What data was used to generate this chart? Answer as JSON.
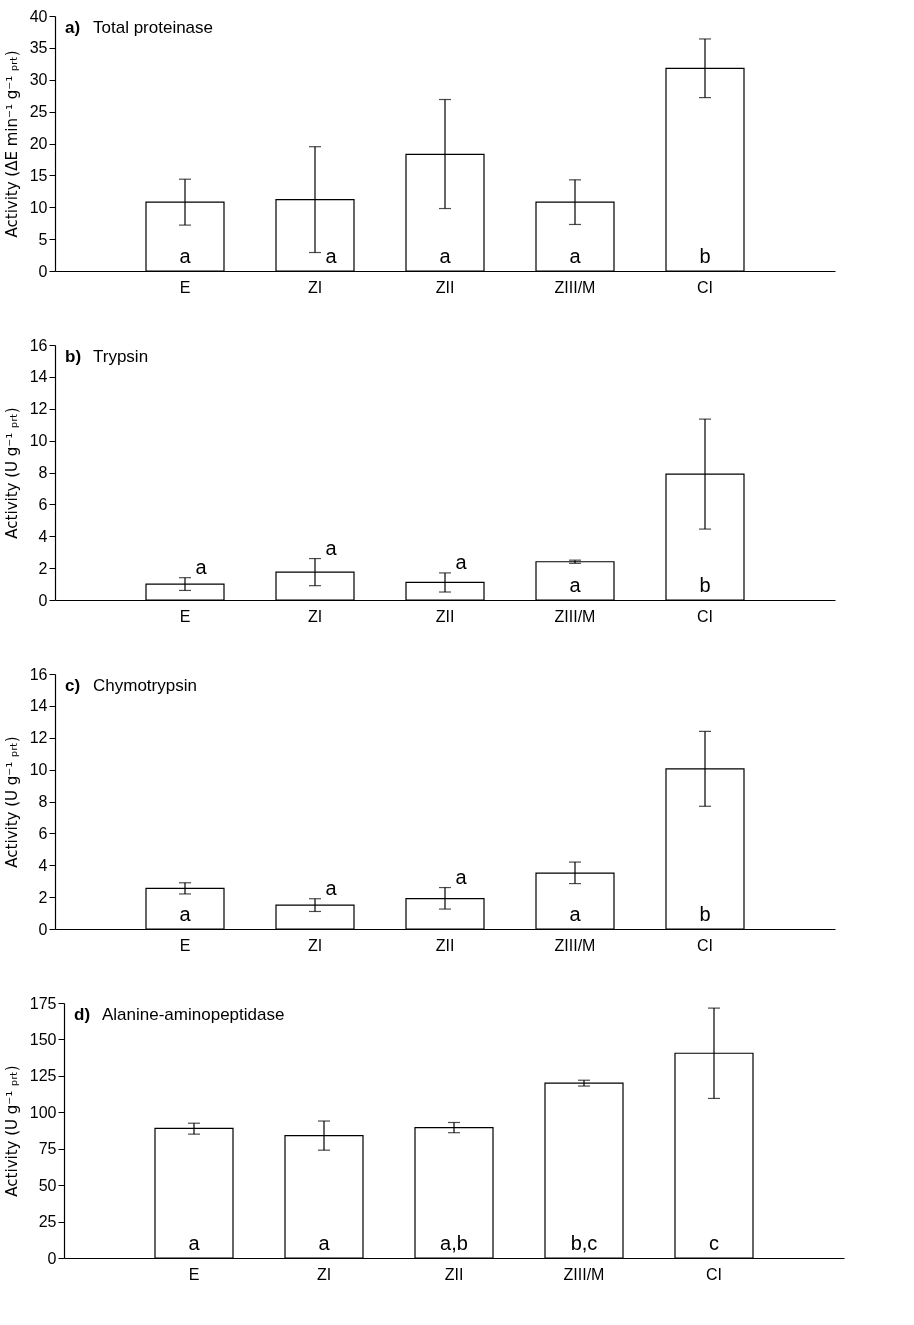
{
  "chart_data": [
    {
      "type": "bar",
      "title": "a) Total proteinase",
      "ylabel": "Activity (ΔE min⁻¹ g⁻¹ ₚᵣₜ)",
      "categories": [
        "E",
        "ZI",
        "ZII",
        "ZIII/M",
        "CI"
      ],
      "values": [
        10.8,
        11.2,
        18.3,
        10.8,
        31.8
      ],
      "errors": [
        [
          7.2,
          14.4
        ],
        [
          2.9,
          19.5
        ],
        [
          9.8,
          26.9
        ],
        [
          7.3,
          14.3
        ],
        [
          27.2,
          36.4
        ]
      ],
      "color": "#ffffff",
      "ylim": [
        0,
        40
      ],
      "yticks": [
        0,
        5,
        10,
        15,
        20,
        25,
        30,
        35,
        40
      ],
      "grid": false,
      "annotations": [
        "a",
        "a",
        "a",
        "a",
        "b"
      ]
    },
    {
      "type": "bar",
      "title": "b) Trypsin",
      "ylabel": "Activity (U g⁻¹ ₚᵣₜ)",
      "categories": [
        "E",
        "ZI",
        "ZII",
        "ZIII/M",
        "CI"
      ],
      "values": [
        1.0,
        1.75,
        1.1,
        2.4,
        7.9
      ],
      "errors": [
        [
          0.6,
          1.4
        ],
        [
          0.9,
          2.6
        ],
        [
          0.5,
          1.7
        ],
        [
          2.3,
          2.5
        ],
        [
          4.45,
          11.35
        ]
      ],
      "color": "#ffffff",
      "ylim": [
        0,
        16
      ],
      "yticks": [
        0,
        2,
        4,
        6,
        8,
        10,
        12,
        14,
        16
      ],
      "grid": false,
      "annotations": [
        "a",
        "a",
        "a",
        "a",
        "b"
      ]
    },
    {
      "type": "bar",
      "title": "c) Chymotrypsin",
      "ylabel": "Activity (U g⁻¹ ₚᵣₜ)",
      "categories": [
        "E",
        "ZI",
        "ZII",
        "ZIII/M",
        "CI"
      ],
      "values": [
        2.55,
        1.5,
        1.9,
        3.5,
        10.05
      ],
      "errors": [
        [
          2.2,
          2.9
        ],
        [
          1.1,
          1.9
        ],
        [
          1.25,
          2.6
        ],
        [
          2.85,
          4.2
        ],
        [
          7.7,
          12.4
        ]
      ],
      "color": "#ffffff",
      "ylim": [
        0,
        16
      ],
      "yticks": [
        0,
        2,
        4,
        6,
        8,
        10,
        12,
        14,
        16
      ],
      "grid": false,
      "annotations": [
        "a",
        "a",
        "a",
        "a",
        "b"
      ]
    },
    {
      "type": "bar",
      "title": "d) Alanine-aminopeptidase",
      "ylabel": "Activity (U g⁻¹ ₚᵣₜ)",
      "categories": [
        "E",
        "ZI",
        "ZII",
        "ZIII/M",
        "CI"
      ],
      "values": [
        89,
        84,
        89.5,
        120,
        140.5
      ],
      "errors": [
        [
          85,
          92.5
        ],
        [
          74,
          94
        ],
        [
          86,
          93
        ],
        [
          118,
          122
        ],
        [
          109.5,
          171.5
        ]
      ],
      "color": "#ffffff",
      "ylim": [
        0,
        175
      ],
      "yticks": [
        0,
        25,
        50,
        75,
        100,
        125,
        150,
        175
      ],
      "grid": false,
      "annotations": [
        "a",
        "a",
        "a,b",
        "b,c",
        "c"
      ]
    }
  ]
}
